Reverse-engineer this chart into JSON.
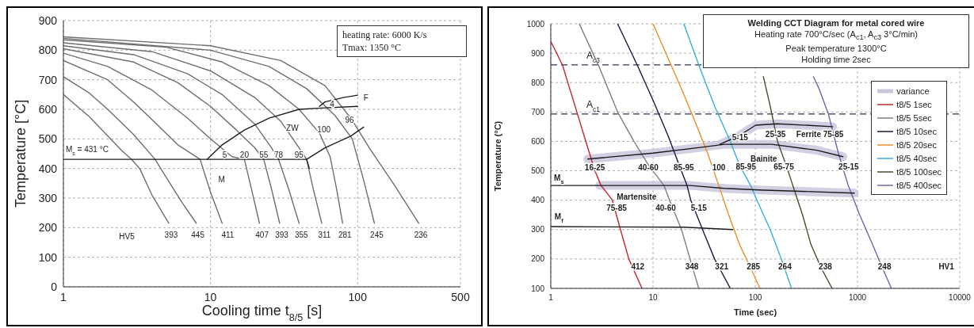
{
  "chart_data": [
    {
      "type": "line",
      "xlabel": "Cooling time t$_{8/5}$ [s]",
      "ylabel": "Temperature [°C]",
      "log": "x",
      "grid": true,
      "xlim": [
        1,
        500
      ],
      "xticks": [
        1,
        10,
        100,
        500
      ],
      "ylim": [
        0,
        900
      ],
      "yticks": [
        0,
        100,
        200,
        300,
        400,
        500,
        600,
        700,
        800,
        900
      ],
      "series": [
        {
          "color": "#6e6e6e",
          "x": [
            1,
            1.5,
            2,
            2.5,
            2.9,
            3.3,
            4,
            5.2
          ],
          "values": [
            650,
            575,
            510,
            460,
            431,
            400,
            310,
            215
          ]
        },
        {
          "color": "#6e6e6e",
          "x": [
            1,
            1.5,
            2,
            3,
            4.2,
            5,
            6.5,
            8
          ],
          "values": [
            710,
            655,
            600,
            515,
            431,
            370,
            280,
            215
          ]
        },
        {
          "color": "#6e6e6e",
          "x": [
            1,
            2,
            3,
            4,
            6,
            8.5,
            10,
            12
          ],
          "values": [
            765,
            700,
            625,
            565,
            480,
            431,
            320,
            215
          ]
        },
        {
          "color": "#6e6e6e",
          "x": [
            1,
            2,
            4,
            7,
            10,
            14,
            17,
            19,
            21.5
          ],
          "values": [
            790,
            745,
            665,
            570,
            500,
            440,
            431,
            330,
            215
          ]
        },
        {
          "color": "#6e6e6e",
          "x": [
            1,
            3,
            6,
            10,
            15,
            20,
            23,
            26,
            29.5
          ],
          "values": [
            805,
            760,
            690,
            610,
            530,
            470,
            431,
            330,
            215
          ]
        },
        {
          "color": "#6e6e6e",
          "x": [
            1,
            3,
            7,
            12,
            20,
            26,
            29,
            34,
            40
          ],
          "values": [
            815,
            785,
            720,
            650,
            550,
            470,
            431,
            330,
            215
          ]
        },
        {
          "color": "#6e6e6e",
          "x": [
            1,
            4,
            10,
            20,
            30,
            40,
            45,
            50,
            57
          ],
          "values": [
            825,
            795,
            730,
            640,
            560,
            470,
            431,
            330,
            215
          ]
        },
        {
          "color": "#6e6e6e",
          "x": [
            1,
            5,
            12,
            25,
            40,
            55,
            65,
            72,
            79
          ],
          "values": [
            835,
            810,
            760,
            680,
            600,
            520,
            440,
            330,
            215
          ]
        },
        {
          "color": "#6e6e6e",
          "x": [
            1,
            10,
            25,
            45,
            70,
            92,
            110,
            130
          ],
          "values": [
            840,
            800,
            745,
            670,
            580,
            500,
            360,
            215
          ]
        },
        {
          "color": "#6e6e6e",
          "x": [
            1,
            10,
            30,
            60,
            90,
            120,
            180,
            260
          ],
          "values": [
            845,
            815,
            765,
            680,
            570,
            470,
            340,
            215
          ]
        },
        {
          "color": "#1e1e1e",
          "x": [
            1,
            45,
            47
          ],
          "values": [
            431,
            431,
            400
          ]
        },
        {
          "color": "#1e1e1e",
          "x": [
            9.5,
            12,
            17,
            25,
            40,
            60,
            100
          ],
          "values": [
            431,
            480,
            530,
            570,
            600,
            605,
            610
          ]
        },
        {
          "color": "#1e1e1e",
          "x": [
            55,
            60,
            80,
            100
          ],
          "values": [
            610,
            625,
            640,
            648
          ]
        },
        {
          "color": "#1e1e1e",
          "x": [
            45,
            60,
            90,
            110
          ],
          "values": [
            431,
            470,
            510,
            540
          ]
        }
      ],
      "annotations": [
        "heating rate: 6000 K/s",
        "Tmax: 1350 °C",
        "M$_{s}$ = 431 °C",
        "M",
        "ZW",
        "F",
        "HV5",
        "5",
        "20",
        "55",
        "78",
        "95",
        "100",
        "96",
        "4",
        "393",
        "445",
        "411",
        "407",
        "393",
        "355",
        "311",
        "281",
        "245",
        "236"
      ]
    },
    {
      "type": "line",
      "title": "Welding CCT Diagram for metal cored wire",
      "subtitle": "Heating rate 700°C/sec (A$_{c1}$, A$_{c3}$ 3°C/min)",
      "xlabel": "Time (sec)",
      "ylabel": "Temperature (°C)",
      "log": "x",
      "grid": true,
      "legend": "right",
      "xlim": [
        1,
        10000
      ],
      "xticks": [
        1,
        10,
        100,
        1000,
        10000
      ],
      "ylim": [
        100,
        1000
      ],
      "yticks": [
        100,
        200,
        300,
        400,
        500,
        600,
        700,
        800,
        900,
        1000
      ],
      "series": [
        {
          "name": "variance",
          "color": "#c9c7dd",
          "x": [
            3,
            23,
            50,
            108,
            930,
            null,
            2.3,
            10,
            30,
            50,
            145,
            400,
            720,
            null,
            45,
            70,
            101,
            164,
            570
          ],
          "values": [
            450,
            450,
            440,
            435,
            424,
            null,
            540,
            560,
            580,
            590,
            590,
            570,
            548,
            null,
            590,
            620,
            655,
            660,
            650
          ]
        },
        {
          "name": "t8/5 1sec",
          "color": "#c0272d",
          "x": [
            1,
            1.3,
            1.8,
            2.2,
            2.7,
            3.1,
            3.5,
            4,
            4.8,
            5.8,
            7.8
          ],
          "values": [
            940,
            860,
            700,
            600,
            500,
            450,
            427,
            400,
            300,
            200,
            100
          ]
        },
        {
          "name": "t8/5 5sec",
          "color": "#7f7f7f",
          "x": [
            1.9,
            3,
            4.5,
            6.5,
            9,
            12.8,
            14.5,
            19,
            23,
            28
          ],
          "values": [
            1000,
            850,
            700,
            600,
            520,
            450,
            400,
            300,
            200,
            100
          ]
        },
        {
          "name": "t8/5 10sec",
          "color": "#1a1a40",
          "x": [
            4.5,
            7,
            10,
            14,
            18,
            21.5,
            23.4,
            30.5,
            40,
            57
          ],
          "values": [
            1000,
            860,
            740,
            620,
            520,
            450,
            400,
            300,
            200,
            100
          ]
        },
        {
          "name": "t8/5 20sec",
          "color": "#e8902a",
          "x": [
            10,
            15,
            20,
            27,
            35,
            44,
            55,
            70,
            90,
            111
          ],
          "values": [
            1000,
            860,
            760,
            650,
            550,
            450,
            350,
            250,
            170,
            100
          ]
        },
        {
          "name": "t8/5 40sec",
          "color": "#3ab0d0",
          "x": [
            20,
            28,
            40,
            57,
            70,
            90,
            110,
            140,
            180,
            226
          ],
          "values": [
            1000,
            860,
            720,
            600,
            520,
            450,
            380,
            300,
            200,
            100
          ]
        },
        {
          "name": "t8/5 100sec",
          "color": "#4a4a30",
          "x": [
            120,
            140,
            165,
            200,
            233,
            290,
            350,
            440,
            565
          ],
          "values": [
            820,
            720,
            600,
            520,
            450,
            350,
            250,
            170,
            100
          ]
        },
        {
          "name": "t8/5 400sec",
          "color": "#6a6aa8",
          "x": [
            370,
            420,
            520,
            650,
            810,
            1050,
            1400,
            1750,
            2150
          ],
          "values": [
            820,
            780,
            692,
            560,
            451,
            350,
            250,
            170,
            100
          ]
        },
        {
          "color": "#1a1a1a",
          "x": [
            1,
            23,
            50,
            108,
            930
          ],
          "values": [
            450,
            450,
            440,
            435,
            424
          ]
        },
        {
          "color": "#1a1a1a",
          "x": [
            1,
            20,
            60
          ],
          "values": [
            310,
            308,
            300
          ]
        },
        {
          "color": "#1a1a1a",
          "x": [
            2.3,
            10,
            30,
            50,
            145,
            400,
            720
          ],
          "values": [
            540,
            560,
            580,
            590,
            590,
            570,
            548
          ]
        },
        {
          "color": "#1a1a1a",
          "x": [
            45,
            70,
            101,
            164,
            570
          ],
          "values": [
            590,
            620,
            655,
            660,
            650
          ]
        }
      ],
      "ref_lines": [
        {
          "axis": "y",
          "value": 860,
          "label": "A$_{c3}$",
          "color": "#333355",
          "line_style": "dashed"
        },
        {
          "axis": "y",
          "value": 693,
          "label": "A$_{c1}$",
          "color": "#333355",
          "line_style": "dashed"
        }
      ],
      "annotations": [
        "Peak temperature 1300°C",
        "Holding time 2sec",
        "M$_{s}$",
        "M$_{f}$",
        "16-25",
        "40-60",
        "85-95",
        "100",
        "5-15",
        "25-35",
        "Ferrite",
        "75-85",
        "Bainite",
        "85-95",
        "65-75",
        "25-15",
        "Martensite",
        "75-85",
        "40-60",
        "5-15",
        "412",
        "348",
        "321",
        "285",
        "264",
        "238",
        "248",
        "HV1"
      ]
    }
  ]
}
